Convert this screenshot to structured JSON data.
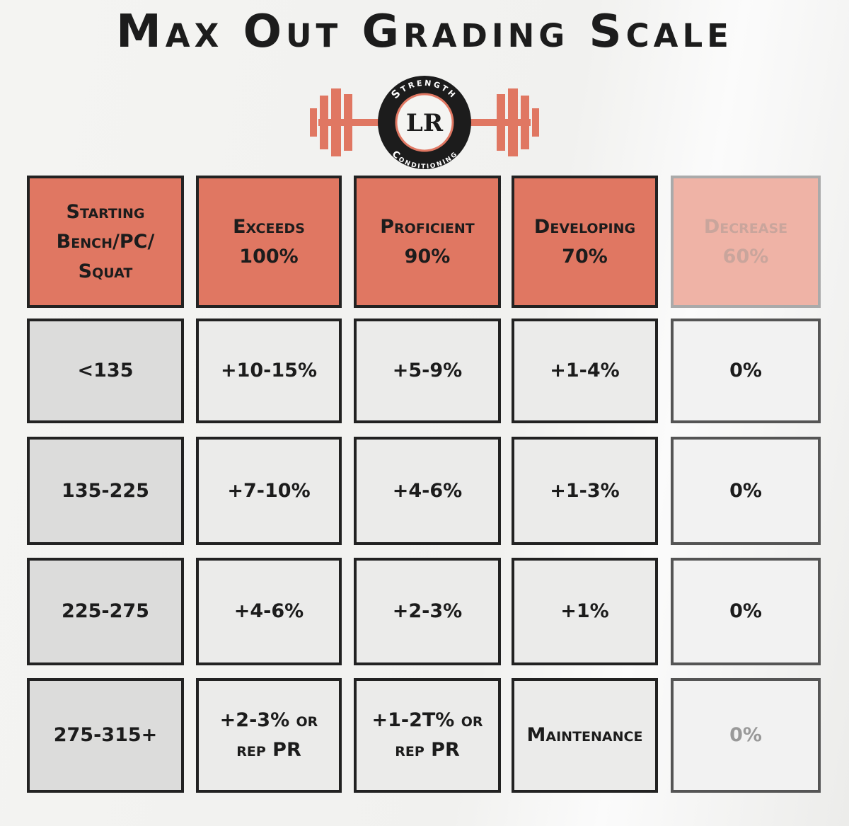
{
  "title": "Max Out Grading Scale",
  "logo": {
    "top_text": "Strength",
    "monogram": "LR",
    "bottom_text": "Conditioning"
  },
  "table": {
    "header": [
      {
        "label": "Starting Bench/PC/ Squat"
      },
      {
        "label": "Exceeds",
        "percent": "100%"
      },
      {
        "label": "Proficient",
        "percent": "90%"
      },
      {
        "label": "Developing",
        "percent": "70%"
      },
      {
        "label": "Decrease",
        "percent": "60%"
      }
    ],
    "rows": [
      [
        "<135",
        "+10-15%",
        "+5-9%",
        "+1-4%",
        "0%"
      ],
      [
        "135-225",
        "+7-10%",
        "+4-6%",
        "+1-3%",
        "0%"
      ],
      [
        "225-275",
        "+4-6%",
        "+2-3%",
        "+1%",
        "0%"
      ],
      [
        "275-315+",
        "+2-3% or rep PR",
        "+1-2T% or rep PR",
        "Maintenance",
        "0%"
      ]
    ]
  }
}
